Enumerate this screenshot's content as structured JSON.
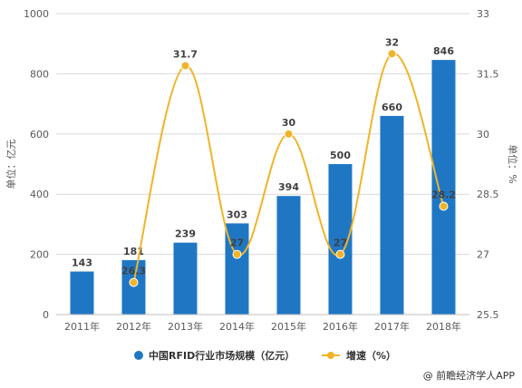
{
  "chart_data": {
    "type": "bar",
    "categories": [
      "2011年",
      "2012年",
      "2013年",
      "2014年",
      "2015年",
      "2016年",
      "2017年",
      "2018年"
    ],
    "series": [
      {
        "name": "中国RFID行业市场规模（亿元）",
        "type": "bar",
        "axis": "left",
        "values": [
          143,
          181,
          239,
          303,
          394,
          500,
          660,
          846
        ],
        "labels": [
          "143",
          "181",
          "239",
          "303",
          "394",
          "500",
          "660",
          "846"
        ],
        "color": "#1f77c4"
      },
      {
        "name": "增速（%）",
        "type": "line",
        "axis": "right",
        "values": [
          null,
          26.3,
          31.7,
          27,
          30,
          27,
          32,
          28.2
        ],
        "labels": [
          "",
          "26.3",
          "31.7",
          "27",
          "30",
          "27",
          "32",
          "28.2"
        ],
        "color": "#f0b429"
      }
    ],
    "ylabel": "单位：亿元",
    "ylabel_right": "单位：%",
    "ylim": [
      0,
      1000
    ],
    "ylim_right": [
      25.5,
      33
    ],
    "yticks": [
      0,
      200,
      400,
      600,
      800,
      1000
    ],
    "yticks_right": [
      "25.5",
      "27",
      "28.5",
      "30",
      "31.5",
      "33"
    ],
    "yticks_right_values": [
      25.5,
      27,
      28.5,
      30,
      31.5,
      33
    ],
    "grid": true,
    "legend": "bottom"
  },
  "credit": "@ 前瞻经济学人APP"
}
